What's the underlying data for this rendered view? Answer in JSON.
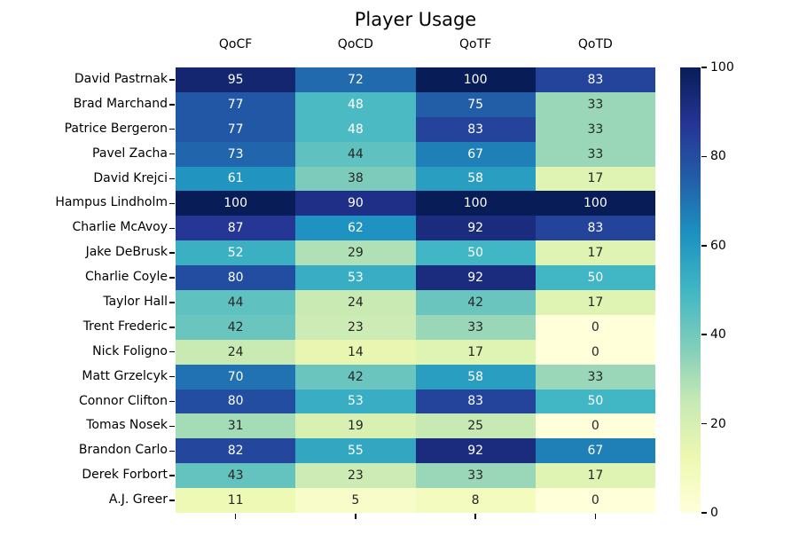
{
  "chart_data": {
    "type": "heatmap",
    "title": "Player Usage",
    "x_labels": [
      "QoCF",
      "QoCD",
      "QoTF",
      "QoTD"
    ],
    "y_labels": [
      "David Pastrnak",
      "Brad Marchand",
      "Patrice Bergeron",
      "Pavel Zacha",
      "David Krejci",
      "Hampus Lindholm",
      "Charlie McAvoy",
      "Jake DeBrusk",
      "Charlie Coyle",
      "Taylor Hall",
      "Trent Frederic",
      "Nick Foligno",
      "Matt Grzelcyk",
      "Connor Clifton",
      "Tomas Nosek",
      "Brandon Carlo",
      "Derek Forbort",
      "A.J. Greer"
    ],
    "values": [
      [
        95,
        72,
        100,
        83
      ],
      [
        77,
        48,
        75,
        33
      ],
      [
        77,
        48,
        83,
        33
      ],
      [
        73,
        44,
        67,
        33
      ],
      [
        61,
        38,
        58,
        17
      ],
      [
        100,
        90,
        100,
        100
      ],
      [
        87,
        62,
        92,
        83
      ],
      [
        52,
        29,
        50,
        17
      ],
      [
        80,
        53,
        92,
        50
      ],
      [
        44,
        24,
        42,
        17
      ],
      [
        42,
        23,
        33,
        0
      ],
      [
        24,
        14,
        17,
        0
      ],
      [
        70,
        42,
        58,
        33
      ],
      [
        80,
        53,
        83,
        50
      ],
      [
        31,
        19,
        25,
        0
      ],
      [
        82,
        55,
        92,
        67
      ],
      [
        43,
        23,
        33,
        17
      ],
      [
        11,
        5,
        8,
        0
      ]
    ],
    "vmin": 0,
    "vmax": 100,
    "grid": false,
    "annotated": true,
    "legend_position": "right-colorbar",
    "colorbar_ticks": [
      100,
      80,
      60,
      40,
      20,
      0
    ],
    "colormap_name": "YlGnBu",
    "colormap_stops": [
      "#ffffd9",
      "#edf8b1",
      "#c7e9b4",
      "#7fcdbb",
      "#41b6c4",
      "#1d91c0",
      "#225ea8",
      "#253494",
      "#081d58"
    ],
    "annotation_text_dark": "#262626",
    "annotation_text_light": "#ffffff"
  }
}
